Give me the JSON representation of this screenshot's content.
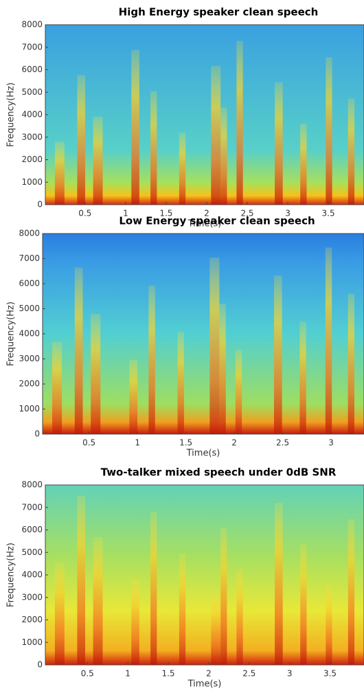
{
  "chart_data": [
    {
      "type": "spectrogram",
      "title": "High Energy speaker clean speech",
      "xlabel": "Time(s)",
      "ylabel": "Frequency(Hz)",
      "xlim": [
        0.01,
        3.94
      ],
      "xticks": [
        0.5,
        1,
        1.5,
        2,
        2.5,
        3,
        3.5
      ],
      "ylim": [
        0,
        8000
      ],
      "yticks": [
        0,
        1000,
        2000,
        3000,
        4000,
        5000,
        6000,
        7000,
        8000
      ]
    },
    {
      "type": "spectrogram",
      "title": "Low Energy speaker clean speech",
      "xlabel": "Time(s)",
      "ylabel": "Frequency(Hz)",
      "xlim": [
        0.02,
        3.34
      ],
      "xticks": [
        0.5,
        1,
        1.5,
        2,
        2.5,
        3
      ],
      "ylim": [
        0,
        8000
      ],
      "yticks": [
        0,
        1000,
        2000,
        3000,
        4000,
        5000,
        6000,
        7000,
        8000
      ]
    },
    {
      "type": "spectrogram",
      "title": "Two-talker mixed speech under 0dB SNR",
      "xlabel": "Time(s)",
      "ylabel": "Frequency(Hz)",
      "xlim": [
        -0.02,
        3.92
      ],
      "xticks": [
        0.5,
        1,
        1.5,
        2,
        2.5,
        3,
        3.5
      ],
      "ylim": [
        0,
        8000
      ],
      "yticks": [
        0,
        1000,
        2000,
        3000,
        4000,
        5000,
        6000,
        7000,
        8000
      ]
    }
  ]
}
